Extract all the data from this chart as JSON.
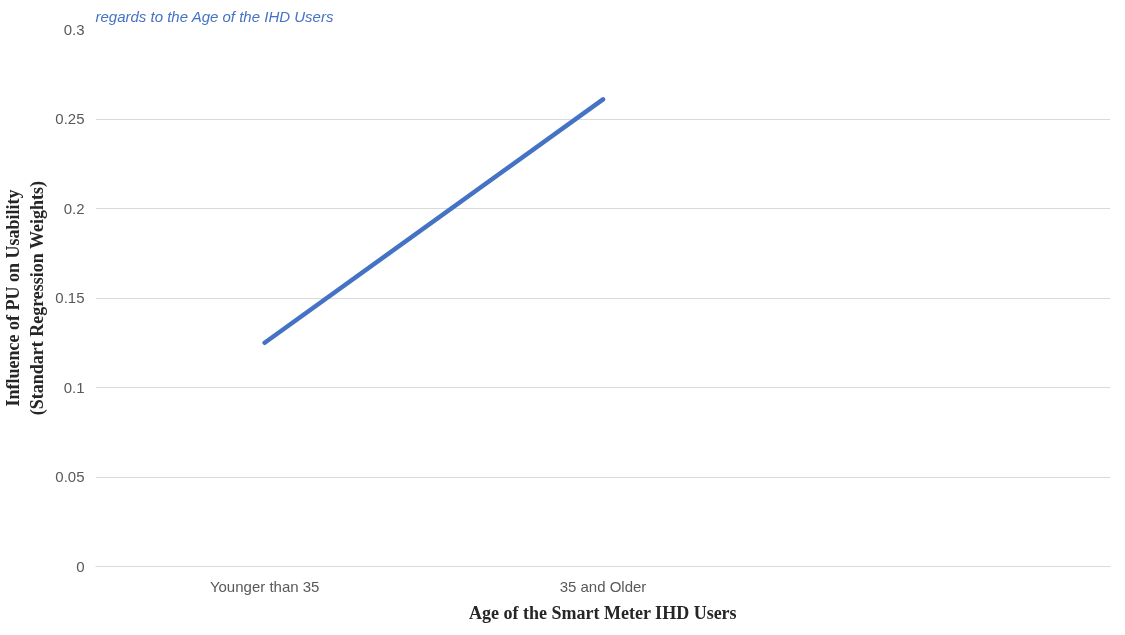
{
  "chart_data": {
    "type": "line",
    "title": "regards to the Age of the IHD Users",
    "xlabel": "Age of the Smart Meter IHD Users",
    "ylabel": "Influence of PU on Usability\n(Standart Regression Weights)",
    "categories": [
      "Younger than 35",
      "35 and Older",
      null
    ],
    "series": [
      {
        "color": "#4472c4",
        "values": [
          0.125,
          0.261,
          null
        ]
      }
    ],
    "ylim": [
      0,
      0.3
    ],
    "yticks": [
      0,
      0.05,
      0.1,
      0.15,
      0.2,
      0.25,
      0.3
    ],
    "grid": "y",
    "marker": "none",
    "line_style": "solid"
  }
}
